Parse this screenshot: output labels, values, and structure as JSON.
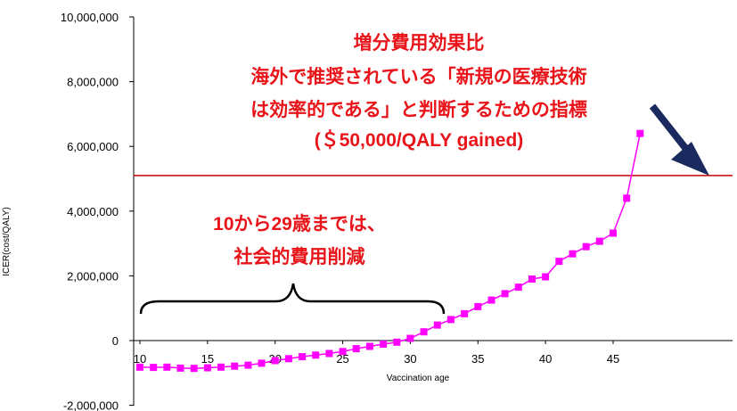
{
  "chart_data": {
    "type": "line",
    "title": "",
    "xlabel": "Vaccination age",
    "ylabel": "ICER(cost/QALY)",
    "xlim": [
      10,
      48
    ],
    "ylim": [
      -2000000,
      10000000
    ],
    "x_ticks": [
      10,
      15,
      20,
      25,
      30,
      35,
      40,
      45
    ],
    "y_ticks": [
      -2000000,
      0,
      2000000,
      4000000,
      6000000,
      8000000,
      10000000
    ],
    "y_tick_labels": [
      "-2,000,000",
      "0",
      "2,000,000",
      "4,000,000",
      "6,000,000",
      "8,000,000",
      "10,000,000"
    ],
    "grid": false,
    "legend": "none",
    "series": [
      {
        "color": "#ff00ff",
        "marker": "square",
        "x": [
          10,
          11,
          12,
          13,
          14,
          15,
          16,
          17,
          18,
          19,
          20,
          21,
          22,
          23,
          24,
          25,
          26,
          27,
          28,
          29,
          30,
          31,
          32,
          33,
          34,
          35,
          36,
          37,
          38,
          39,
          40,
          41,
          42,
          43,
          44,
          45,
          46,
          47
        ],
        "y": [
          -820000,
          -830000,
          -820000,
          -850000,
          -860000,
          -840000,
          -820000,
          -790000,
          -760000,
          -700000,
          -620000,
          -560000,
          -500000,
          -450000,
          -400000,
          -340000,
          -250000,
          -180000,
          -110000,
          -50000,
          70000,
          270000,
          480000,
          650000,
          830000,
          1050000,
          1250000,
          1450000,
          1650000,
          1900000,
          1970000,
          2450000,
          2680000,
          2900000,
          3070000,
          3320000,
          4400000,
          6400000
        ]
      }
    ],
    "threshold": {
      "y": 5100000,
      "color": "#cc0000"
    },
    "annotations": {
      "threshold_title": "増分費用効果比",
      "threshold_line1": "海外で推奨されている「新規の医療技術",
      "threshold_line2": "は効率的である」と判断するための指標",
      "threshold_value": "(＄50,000/QALY gained)",
      "savings_line1": "10から29歳までは、",
      "savings_line2": "社会的費用削減"
    },
    "colors": {
      "annotation": "#e8141a",
      "arrow": "#1a2a5e",
      "bracket": "#000000"
    }
  }
}
